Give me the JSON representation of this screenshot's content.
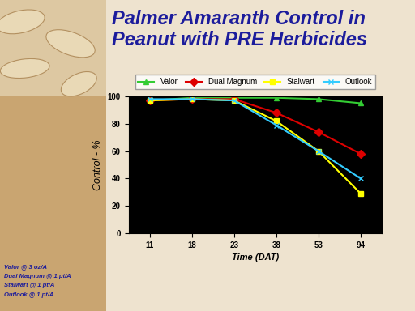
{
  "chart_data": {
    "type": "line",
    "title": "Palmer Amaranth Control in Peanut with PRE Herbicides",
    "x_label": "Time (DAT)",
    "y_label": "Control - %",
    "categories": [
      "11",
      "18",
      "23",
      "38",
      "53",
      "94"
    ],
    "series": [
      {
        "name": "Valor",
        "color": "#33cc33",
        "marker": "triangle",
        "values": [
          97,
          99,
          99,
          99,
          98,
          95
        ]
      },
      {
        "name": "Dual Magnum",
        "color": "#dd0000",
        "marker": "diamond",
        "values": [
          97,
          98,
          98,
          88,
          74,
          58
        ]
      },
      {
        "name": "Stalwart",
        "color": "#ffff00",
        "marker": "square",
        "values": [
          97,
          98,
          97,
          82,
          60,
          29
        ]
      },
      {
        "name": "Outlook",
        "color": "#33ccff",
        "marker": "x",
        "values": [
          98,
          98,
          97,
          79,
          60,
          40
        ]
      }
    ],
    "ylim": [
      0,
      100
    ],
    "yticks": [
      0,
      20,
      40,
      60,
      80,
      100
    ],
    "grid": false,
    "legend": "upper center",
    "notes": [
      "Valor @ 3 oz/A",
      "Dual Magnum @ 1 pt/A",
      "Stalwart @ 1 pt/A",
      "Outlook @ 1 pt/A"
    ]
  }
}
